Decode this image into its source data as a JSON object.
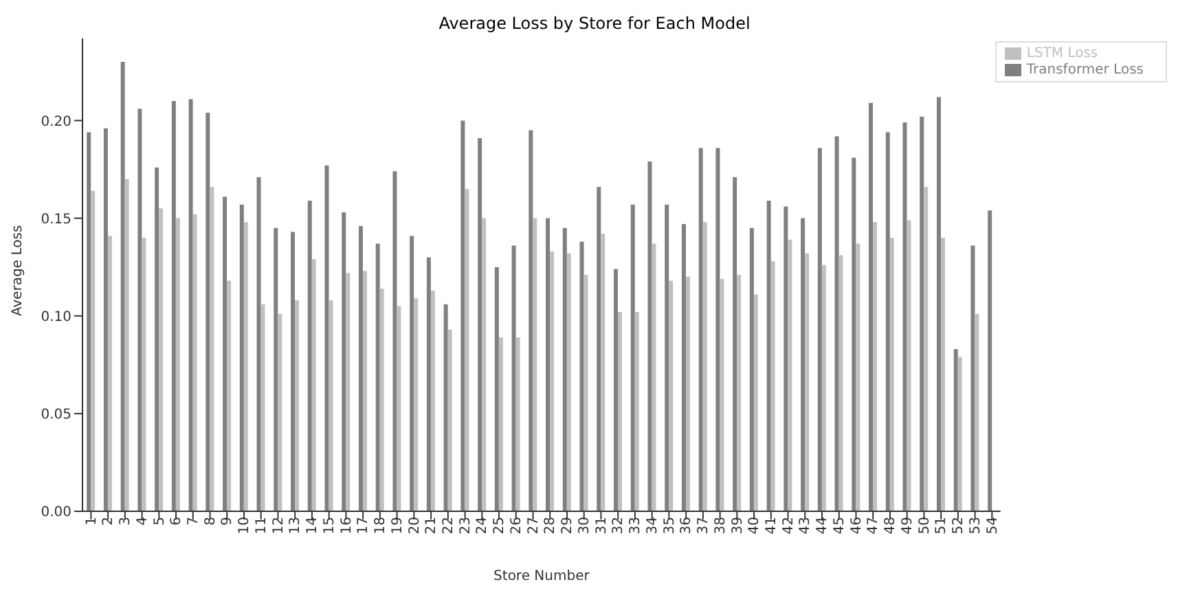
{
  "chart_data": {
    "type": "bar",
    "title": "Average Loss by Store for Each Model",
    "xlabel": "Store Number",
    "ylabel": "Average Loss",
    "categories": [
      "1",
      "2",
      "3",
      "4",
      "5",
      "6",
      "7",
      "8",
      "9",
      "10",
      "11",
      "12",
      "13",
      "14",
      "15",
      "16",
      "17",
      "18",
      "19",
      "20",
      "21",
      "22",
      "23",
      "24",
      "25",
      "26",
      "27",
      "28",
      "29",
      "30",
      "31",
      "32",
      "33",
      "34",
      "35",
      "36",
      "37",
      "38",
      "39",
      "40",
      "41",
      "42",
      "43",
      "44",
      "45",
      "46",
      "47",
      "48",
      "49",
      "50",
      "51",
      "52",
      "53",
      "54"
    ],
    "series": [
      {
        "name": "Transformer Loss",
        "color": "#808080",
        "values": [
          0.194,
          0.196,
          0.23,
          0.206,
          0.176,
          0.21,
          0.211,
          0.204,
          0.161,
          0.157,
          0.171,
          0.145,
          0.143,
          0.159,
          0.177,
          0.153,
          0.146,
          0.137,
          0.174,
          0.141,
          0.13,
          0.106,
          0.2,
          0.191,
          0.125,
          0.136,
          0.195,
          0.15,
          0.145,
          0.138,
          0.166,
          0.124,
          0.157,
          0.179,
          0.157,
          0.147,
          0.186,
          0.186,
          0.171,
          0.145,
          0.159,
          0.156,
          0.15,
          0.186,
          0.192,
          0.181,
          0.209,
          0.194,
          0.199,
          0.202,
          0.212,
          0.083,
          0.136,
          0.154
        ]
      },
      {
        "name": "LSTM Loss",
        "color": "#c0c0c0",
        "values": [
          0.164,
          0.141,
          0.17,
          0.14,
          0.155,
          0.15,
          0.152,
          0.166,
          0.118,
          0.148,
          0.106,
          0.101,
          0.108,
          0.129,
          0.108,
          0.122,
          0.123,
          0.114,
          0.105,
          0.109,
          0.113,
          0.093,
          0.165,
          0.15,
          0.089,
          0.089,
          0.15,
          0.133,
          0.132,
          0.121,
          0.142,
          0.102,
          0.102,
          0.137,
          0.118,
          0.12,
          0.148,
          0.119,
          0.121,
          0.111,
          0.128,
          0.139,
          0.132,
          0.126,
          0.131,
          0.137,
          0.148,
          0.14,
          0.149,
          0.166,
          0.14,
          0.079,
          0.101,
          null
        ]
      }
    ],
    "ylim": [
      0,
      0.242
    ],
    "yticks": [
      {
        "value": 0,
        "label": "0.00"
      },
      {
        "value": 0.05,
        "label": "0.05"
      },
      {
        "value": 0.1,
        "label": "0.10"
      },
      {
        "value": 0.15,
        "label": "0.15"
      },
      {
        "value": 0.2,
        "label": "0.20"
      }
    ],
    "legend": "top right",
    "grid": false
  }
}
